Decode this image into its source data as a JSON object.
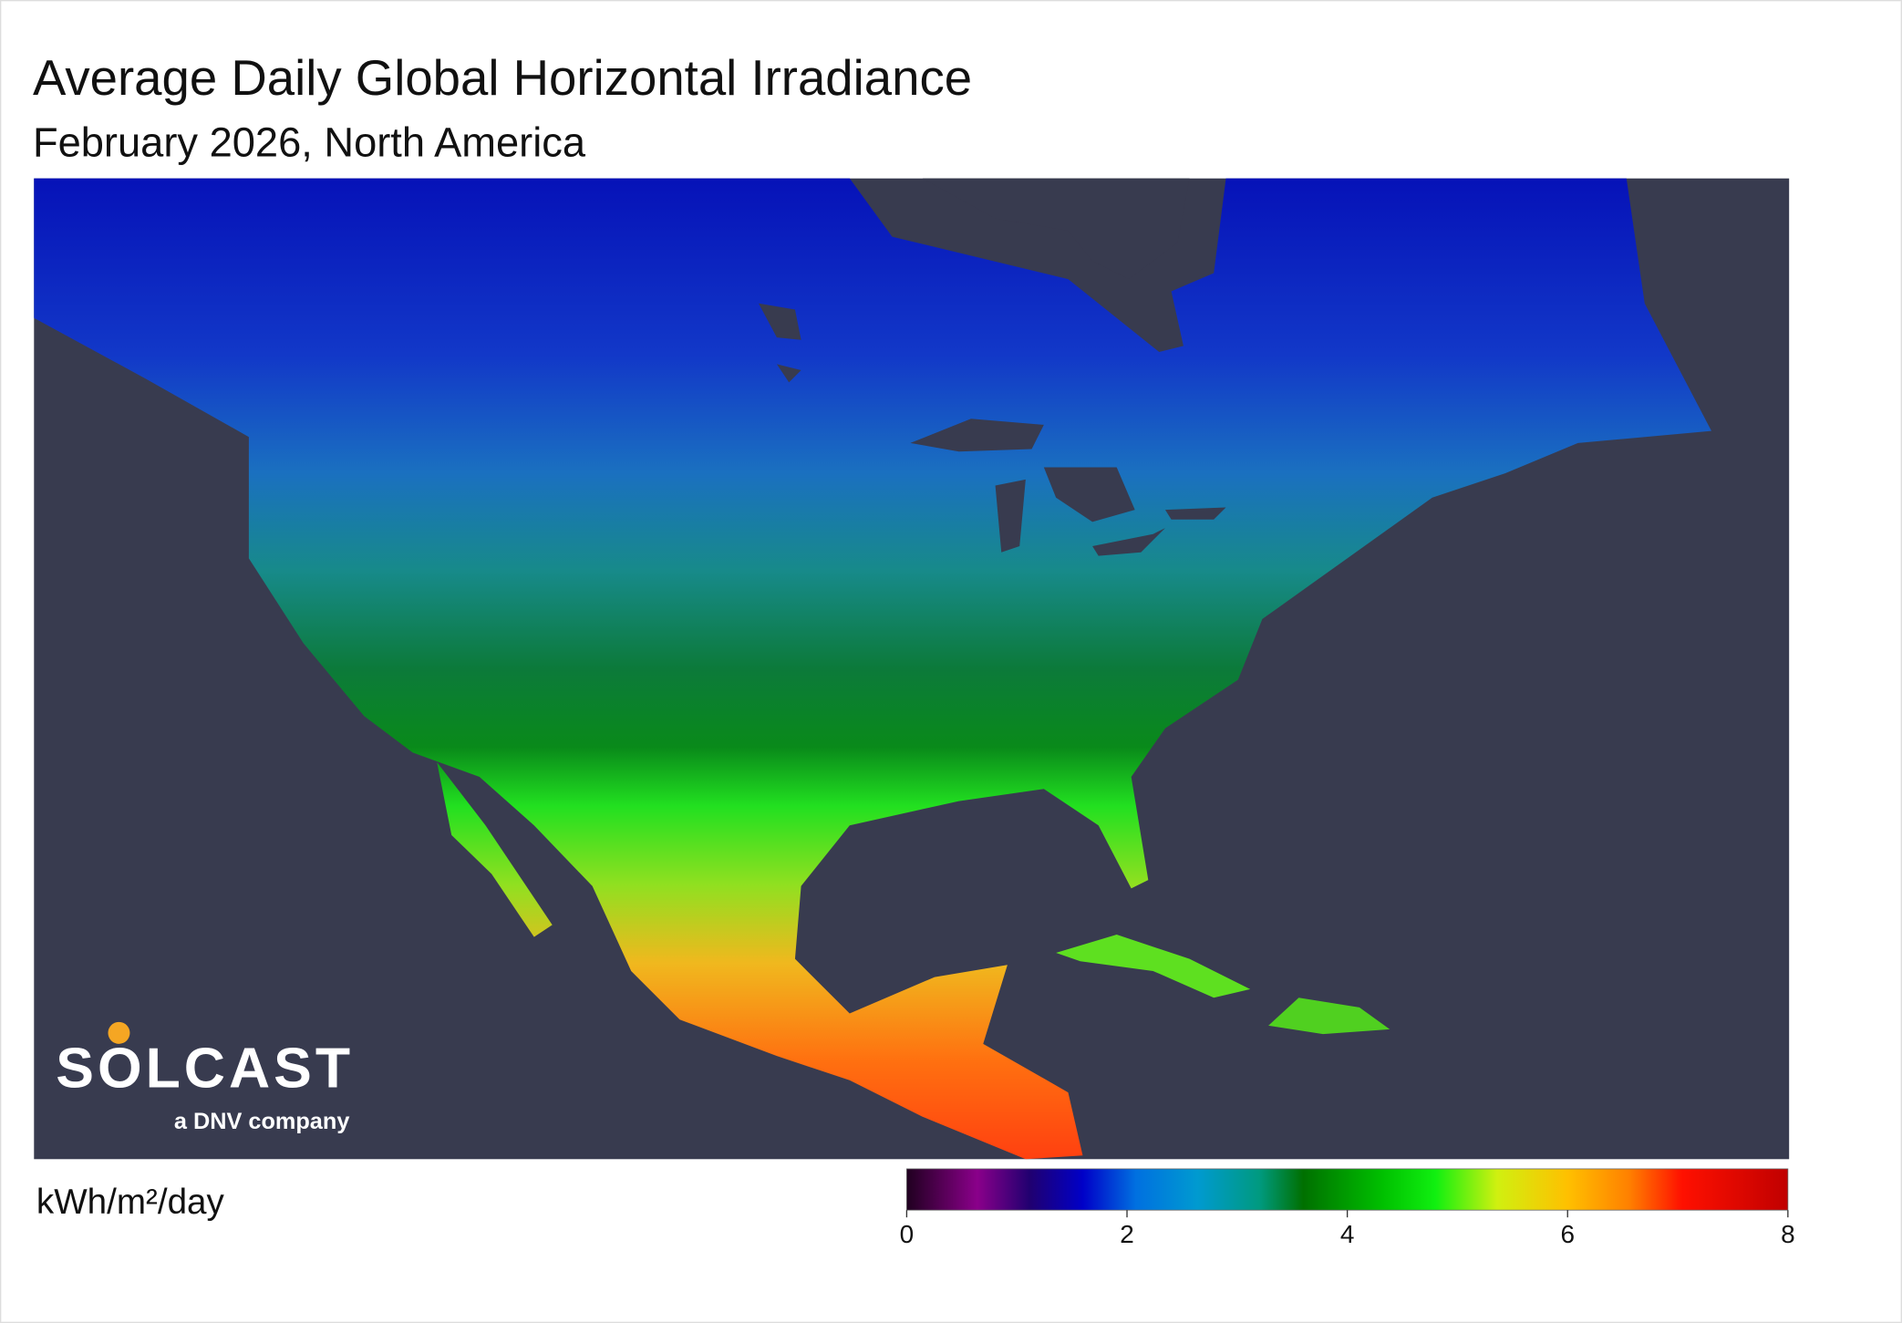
{
  "header": {
    "title": "Average Daily Global Horizontal Irradiance",
    "subtitle": "February 2026, North America"
  },
  "colorbar": {
    "label": "kWh/m²/day",
    "range": [
      0,
      8
    ],
    "ticks": [
      0,
      2,
      4,
      6,
      8
    ]
  },
  "logo": {
    "name": "SOLCAST",
    "tagline": "a DNV company"
  }
}
